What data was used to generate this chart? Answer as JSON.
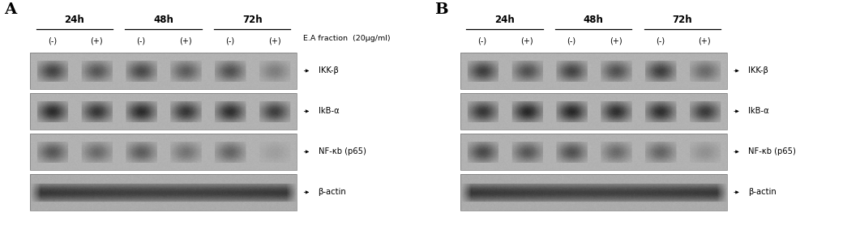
{
  "panel_A_label": "A",
  "panel_B_label": "B",
  "time_labels": [
    "24h",
    "48h",
    "72h"
  ],
  "sample_labels": [
    "(-)",
    "(+)",
    "(-)",
    "(+)",
    "(-)",
    "(+)"
  ],
  "fraction_label": "E.A fraction  (20μg/ml)",
  "band_labels": [
    "IKK-β",
    "IkB-α",
    "NF-κb (p65)",
    "β-actin"
  ],
  "bg_color": "#ffffff",
  "blot_bg": "#b0b0b0",
  "panel_A": {
    "bands": [
      [
        0.25,
        0.35,
        0.28,
        0.38,
        0.32,
        0.55
      ],
      [
        0.12,
        0.18,
        0.12,
        0.18,
        0.14,
        0.22
      ],
      [
        0.35,
        0.45,
        0.38,
        0.5,
        0.42,
        0.72
      ],
      [
        0.08,
        0.1,
        0.08,
        0.1,
        0.08,
        0.12
      ]
    ]
  },
  "panel_B": {
    "bands": [
      [
        0.22,
        0.32,
        0.25,
        0.32,
        0.22,
        0.45
      ],
      [
        0.18,
        0.1,
        0.1,
        0.14,
        0.14,
        0.2
      ],
      [
        0.28,
        0.35,
        0.32,
        0.45,
        0.42,
        0.65
      ],
      [
        0.08,
        0.08,
        0.09,
        0.09,
        0.09,
        0.11
      ]
    ]
  }
}
